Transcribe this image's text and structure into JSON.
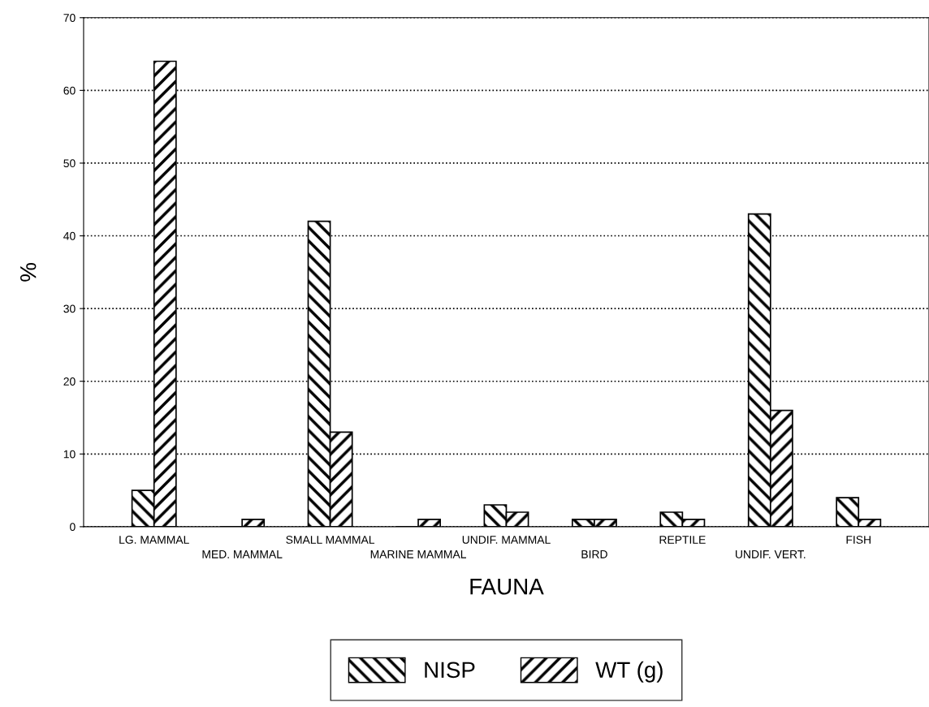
{
  "chart_data": {
    "type": "bar",
    "xlabel": "FAUNA",
    "ylabel": "%",
    "categories": [
      "LG. MAMMAL",
      "MED. MAMMAL",
      "SMALL MAMMAL",
      "MARINE MAMMAL",
      "UNDIF. MAMMAL",
      "BIRD",
      "REPTILE",
      "UNDIF. VERT.",
      "FISH"
    ],
    "series": [
      {
        "name": "NISP",
        "color": "#000000",
        "values": [
          5,
          0,
          42,
          0,
          3,
          1,
          2,
          43,
          4
        ]
      },
      {
        "name": "WT (g)",
        "color": "#000000",
        "values": [
          64,
          1,
          13,
          1,
          2,
          1,
          1,
          16,
          1
        ]
      }
    ],
    "ylim": [
      0,
      70
    ],
    "yticks": [
      0,
      10,
      20,
      30,
      40,
      50,
      60,
      70
    ],
    "grid": "y",
    "legend": "bottom"
  }
}
